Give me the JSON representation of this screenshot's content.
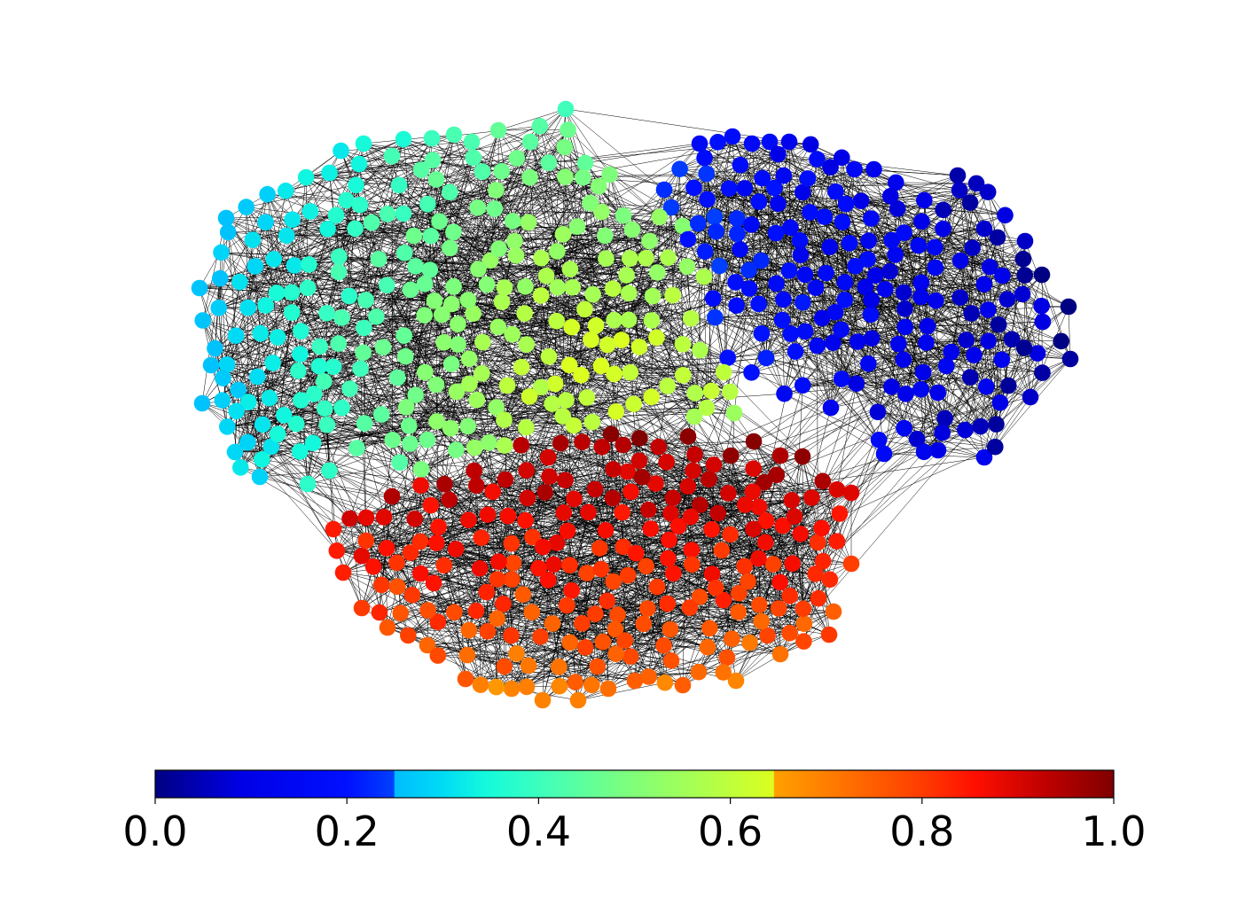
{
  "figure": {
    "background": "#ffffff"
  },
  "network": {
    "edge_color": "#000000",
    "communities": [
      {
        "value_range": [
          0.0,
          0.25
        ]
      },
      {
        "value_range": [
          0.26,
          0.645
        ]
      },
      {
        "value_range": [
          0.65,
          1.0
        ]
      }
    ]
  },
  "colorbar": {
    "min": 0.0,
    "max": 1.0,
    "tick_values": [
      0.0,
      0.2,
      0.4,
      0.6,
      0.8,
      1.0
    ],
    "ticks": [
      "0.0",
      "0.2",
      "0.4",
      "0.6",
      "0.8",
      "1.0"
    ],
    "stops": [
      [
        0.0,
        "#000082"
      ],
      [
        0.09,
        "#0000e6"
      ],
      [
        0.2,
        "#0010ff"
      ],
      [
        0.249,
        "#0040ff"
      ],
      [
        0.25,
        "#00bcff"
      ],
      [
        0.3,
        "#00dcf5"
      ],
      [
        0.345,
        "#14fadc"
      ],
      [
        0.4,
        "#3cffbe"
      ],
      [
        0.485,
        "#78ff82"
      ],
      [
        0.6,
        "#beff3c"
      ],
      [
        0.645,
        "#dcff1e"
      ],
      [
        0.646,
        "#ffa000"
      ],
      [
        0.71,
        "#ff7800"
      ],
      [
        0.8,
        "#ff3c00"
      ],
      [
        0.855,
        "#ff0f00"
      ],
      [
        0.93,
        "#be0000"
      ],
      [
        1.0,
        "#800000"
      ]
    ]
  }
}
